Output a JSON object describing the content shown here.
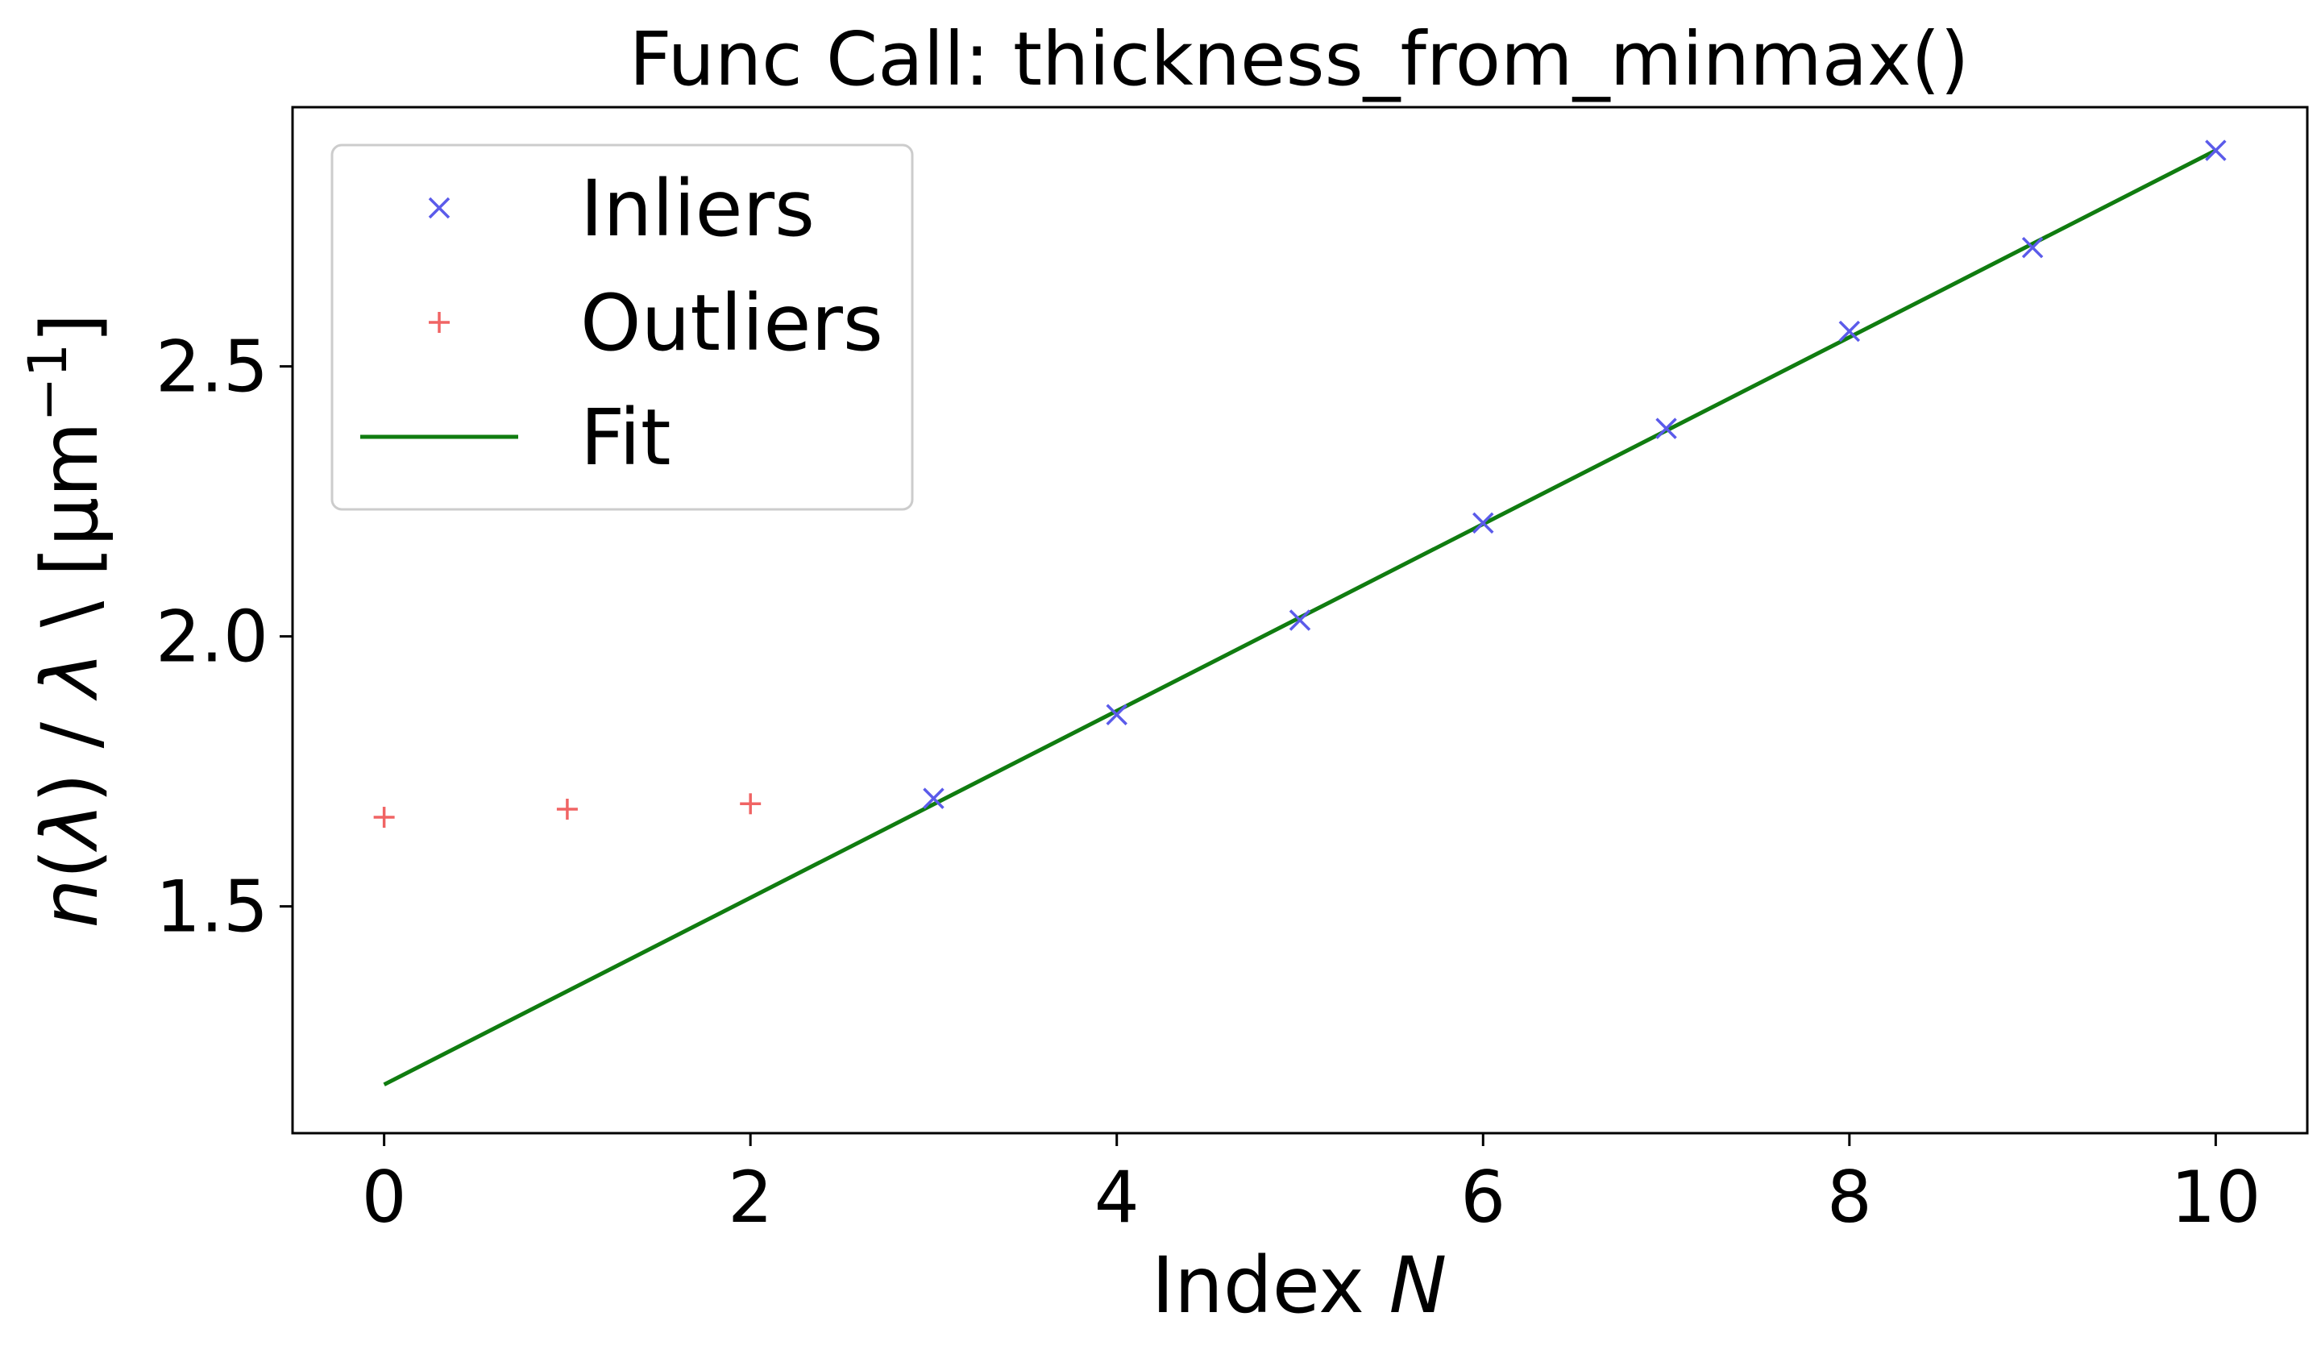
{
  "chart_data": {
    "type": "scatter",
    "title": "Func Call: thickness_from_minmax()",
    "xlabel_prefix": "Index ",
    "xlabel_var": "N",
    "ylabel_n": "n",
    "ylabel_paren1": "(",
    "ylabel_lambda1": "λ",
    "ylabel_paren2": ") / ",
    "ylabel_lambda2": "λ",
    "ylabel_unit": " \\ [µm",
    "ylabel_exp": "−1",
    "ylabel_close": "]",
    "xlim": [
      -0.5,
      10.5
    ],
    "ylim": [
      1.08,
      2.98
    ],
    "xticks": [
      0,
      2,
      4,
      6,
      8,
      10
    ],
    "xtick_labels": [
      "0",
      "2",
      "4",
      "6",
      "8",
      "10"
    ],
    "yticks": [
      1.5,
      2.0,
      2.5
    ],
    "ytick_labels": [
      "1.5",
      "2.0",
      "2.5"
    ],
    "grid": false,
    "legend_position": "top-left",
    "series": [
      {
        "name": "Inliers",
        "marker": "x",
        "color": "#5b5bea",
        "x": [
          3,
          4,
          5,
          6,
          7,
          8,
          9,
          10
        ],
        "y": [
          1.7,
          1.855,
          2.03,
          2.21,
          2.385,
          2.565,
          2.72,
          2.9
        ]
      },
      {
        "name": "Outliers",
        "marker": "+",
        "color": "#f06464",
        "x": [
          0,
          1,
          2
        ],
        "y": [
          1.665,
          1.68,
          1.69
        ]
      },
      {
        "name": "Fit",
        "marker": "line",
        "color": "#107c10",
        "x": [
          0,
          10
        ],
        "y": [
          1.17,
          2.9
        ]
      }
    ]
  }
}
